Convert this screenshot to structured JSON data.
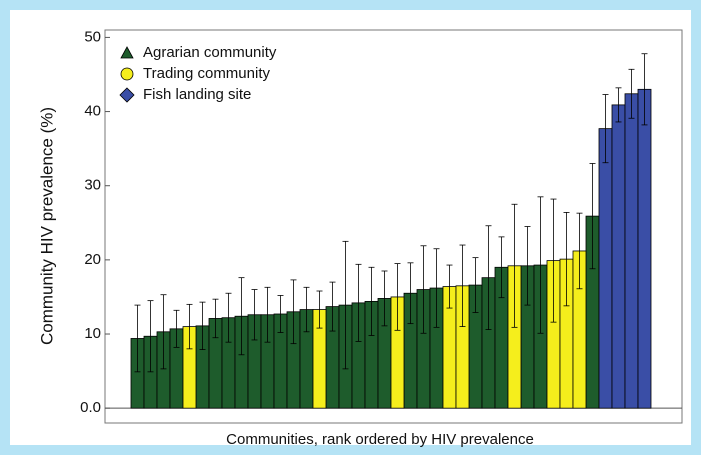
{
  "chart_data": {
    "type": "bar",
    "x_label": "Communities, rank ordered by HIV prevalence",
    "y_label": "Community HIV prevalence (%)",
    "categories": [
      null,
      null,
      null,
      null,
      null,
      null,
      null,
      null,
      null,
      null,
      null,
      null,
      null,
      null,
      null,
      null,
      null,
      null,
      null,
      null,
      null,
      null,
      null,
      null,
      null,
      null,
      null,
      null,
      null,
      null,
      null,
      null,
      null,
      null,
      null,
      null,
      null,
      null,
      null,
      null
    ],
    "series": [
      {
        "name": "Agrarian community",
        "color": "#1e5c2c",
        "marker": "triangle",
        "values": [
          9.4,
          9.7,
          10.3,
          10.7,
          null,
          11.1,
          12.1,
          12.2,
          12.4,
          12.6,
          12.6,
          12.7,
          13.0,
          13.3,
          null,
          13.7,
          13.9,
          14.2,
          14.4,
          14.8,
          null,
          15.5,
          16.0,
          16.2,
          null,
          null,
          16.6,
          17.6,
          19.0,
          null,
          19.2,
          19.3,
          null,
          null,
          null,
          25.9,
          null,
          null,
          null,
          null
        ],
        "errors": [
          4.5,
          4.8,
          5.0,
          2.5,
          null,
          3.2,
          2.6,
          3.3,
          5.2,
          3.4,
          3.7,
          2.5,
          4.3,
          3.0,
          null,
          3.3,
          8.6,
          5.2,
          4.6,
          3.7,
          null,
          4.1,
          5.9,
          5.3,
          null,
          null,
          3.7,
          7.0,
          4.1,
          null,
          5.3,
          9.2,
          null,
          null,
          null,
          7.1,
          null,
          null,
          null,
          null
        ]
      },
      {
        "name": "Trading community",
        "color": "#f5ee1c",
        "marker": "circle",
        "values": [
          null,
          null,
          null,
          null,
          11.0,
          null,
          null,
          null,
          null,
          null,
          null,
          null,
          null,
          null,
          13.3,
          null,
          null,
          null,
          null,
          null,
          15.0,
          null,
          null,
          null,
          16.4,
          16.5,
          null,
          null,
          null,
          19.2,
          null,
          null,
          19.9,
          20.1,
          21.2,
          null,
          null,
          null,
          null,
          null
        ],
        "errors": [
          null,
          null,
          null,
          null,
          3.0,
          null,
          null,
          null,
          null,
          null,
          null,
          null,
          null,
          null,
          2.5,
          null,
          null,
          null,
          null,
          null,
          4.5,
          null,
          null,
          null,
          2.9,
          5.5,
          null,
          null,
          null,
          8.3,
          null,
          null,
          8.3,
          6.3,
          5.1,
          null,
          null,
          null,
          null,
          null
        ]
      },
      {
        "name": "Fish landing site",
        "color": "#3a4ea6",
        "marker": "diamond",
        "values": [
          null,
          null,
          null,
          null,
          null,
          null,
          null,
          null,
          null,
          null,
          null,
          null,
          null,
          null,
          null,
          null,
          null,
          null,
          null,
          null,
          null,
          null,
          null,
          null,
          null,
          null,
          null,
          null,
          null,
          null,
          null,
          null,
          null,
          null,
          null,
          null,
          37.7,
          40.9,
          42.4,
          43.0
        ],
        "errors": [
          null,
          null,
          null,
          null,
          null,
          null,
          null,
          null,
          null,
          null,
          null,
          null,
          null,
          null,
          null,
          null,
          null,
          null,
          null,
          null,
          null,
          null,
          null,
          null,
          null,
          null,
          null,
          null,
          null,
          null,
          null,
          null,
          null,
          null,
          null,
          null,
          4.6,
          2.3,
          3.3,
          4.8
        ]
      }
    ],
    "ylim": [
      -2,
      51
    ],
    "yticks": [
      {
        "value": 0,
        "label": "0.0"
      },
      10,
      20,
      30,
      40,
      50
    ],
    "legend": "upper left"
  }
}
